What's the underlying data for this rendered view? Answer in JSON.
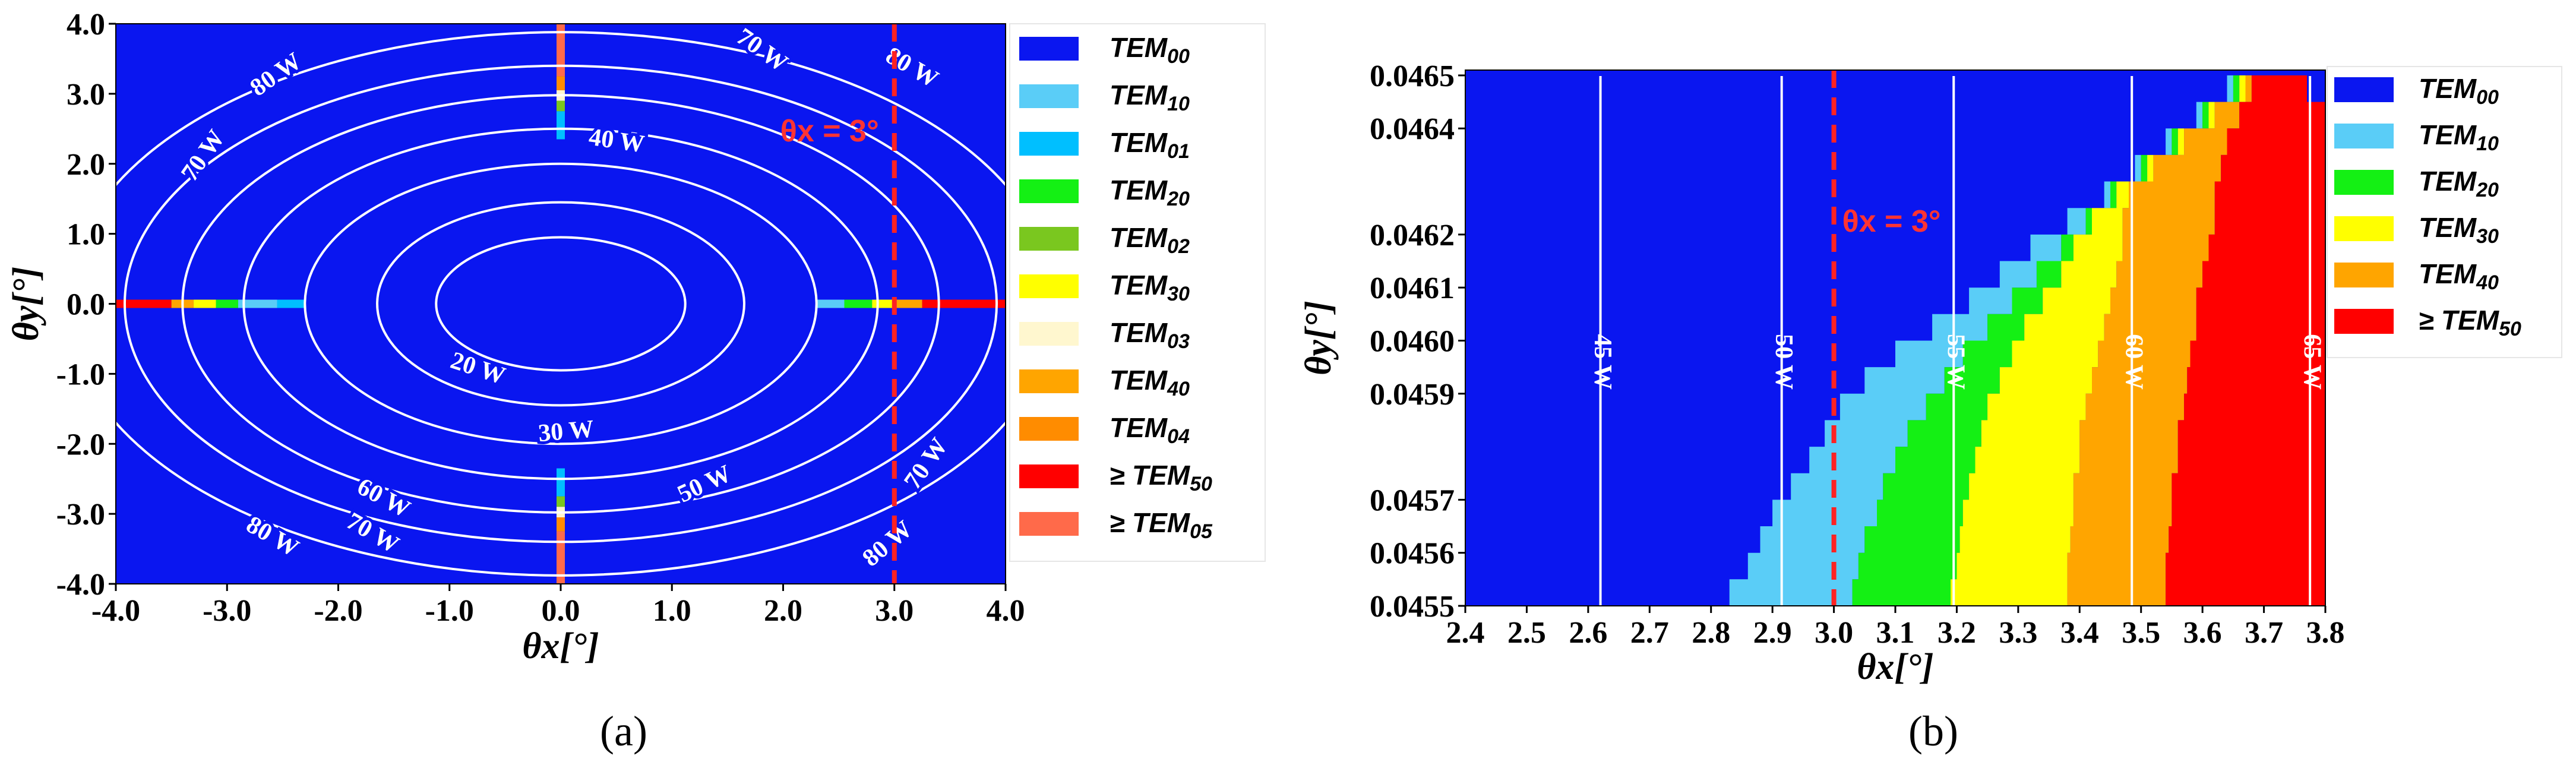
{
  "chart_data": [
    {
      "type": "heatmap",
      "panel_label": "(a)",
      "xlabel": "θx[°]",
      "ylabel": "θy[°]",
      "xlim": [
        -4.0,
        4.0
      ],
      "ylim": [
        -4.0,
        4.0
      ],
      "x_ticks": [
        "-4.0",
        "-3.0",
        "-2.0",
        "-1.0",
        "0.0",
        "1.0",
        "2.0",
        "3.0",
        "4.0"
      ],
      "y_ticks": [
        "-4.0",
        "-3.0",
        "-2.0",
        "-1.0",
        "0.0",
        "1.0",
        "2.0",
        "3.0",
        "4.0"
      ],
      "background_mode": "TEM00",
      "marker_line": {
        "x": 3.0,
        "label": "θx = 3°",
        "color": "#ff2222",
        "style": "dashed"
      },
      "legend": [
        {
          "label": "TEM00",
          "color": "#0a16f0"
        },
        {
          "label": "TEM10",
          "color": "#5acdf7"
        },
        {
          "label": "TEM01",
          "color": "#00bfff"
        },
        {
          "label": "TEM20",
          "color": "#14f014"
        },
        {
          "label": "TEM02",
          "color": "#7ac71f"
        },
        {
          "label": "TEM30",
          "color": "#ffff00"
        },
        {
          "label": "TEM03",
          "color": "#fff7cf"
        },
        {
          "label": "TEM40",
          "color": "#ffa500"
        },
        {
          "label": "TEM04",
          "color": "#ff8c00"
        },
        {
          "label": "≥ TEM50",
          "color": "#ff0000"
        },
        {
          "label": "≥ TEM05",
          "color": "#ff6a4a"
        }
      ],
      "contours": [
        {
          "label": "20 W",
          "rx": 1.12,
          "ry": 0.95
        },
        {
          "label": "30 W",
          "rx": 1.65,
          "ry": 1.45
        },
        {
          "label": "40 W",
          "rx": 2.3,
          "ry": 2.0
        },
        {
          "label": "50 W",
          "rx": 2.85,
          "ry": 2.5
        },
        {
          "label": "60 W",
          "rx": 3.4,
          "ry": 2.98
        },
        {
          "label": "70 W",
          "rx": 3.92,
          "ry": 3.4
        },
        {
          "label": "80 W",
          "rx": 4.45,
          "ry": 3.88
        }
      ],
      "contour_labels": [
        {
          "text": "20 W",
          "x": -0.75,
          "y": -0.95,
          "rot": 18
        },
        {
          "text": "30 W",
          "x": 0.05,
          "y": -1.85,
          "rot": -5
        },
        {
          "text": "40 W",
          "x": 0.5,
          "y": 2.3,
          "rot": 8
        },
        {
          "text": "50 W",
          "x": 1.3,
          "y": -2.6,
          "rot": -25
        },
        {
          "text": "60 W",
          "x": -1.6,
          "y": -2.8,
          "rot": 28
        },
        {
          "text": "70 W",
          "x": -1.7,
          "y": -3.3,
          "rot": 30
        },
        {
          "text": "70 W",
          "x": -3.2,
          "y": 2.1,
          "rot": -55
        },
        {
          "text": "70 W",
          "x": 1.8,
          "y": 3.6,
          "rot": 35
        },
        {
          "text": "70 W",
          "x": 3.3,
          "y": -2.3,
          "rot": -55
        },
        {
          "text": "80 W",
          "x": -2.55,
          "y": 3.25,
          "rot": -35
        },
        {
          "text": "80 W",
          "x": -2.6,
          "y": -3.35,
          "rot": 30
        },
        {
          "text": "80 W",
          "x": 3.15,
          "y": 3.35,
          "rot": 30
        },
        {
          "text": "80 W",
          "x": 2.95,
          "y": -3.45,
          "rot": -40
        }
      ],
      "mode_segments": [
        {
          "axis": "h",
          "from": -4.0,
          "to": -3.5,
          "mode": "≥ TEM50"
        },
        {
          "axis": "h",
          "from": -3.5,
          "to": -3.3,
          "mode": "TEM40"
        },
        {
          "axis": "h",
          "from": -3.3,
          "to": -3.1,
          "mode": "TEM30"
        },
        {
          "axis": "h",
          "from": -3.1,
          "to": -2.9,
          "mode": "TEM20"
        },
        {
          "axis": "h",
          "from": -2.9,
          "to": -2.55,
          "mode": "TEM10"
        },
        {
          "axis": "h",
          "from": -2.55,
          "to": -2.3,
          "mode": "TEM01"
        },
        {
          "axis": "h",
          "from": 2.3,
          "to": 2.55,
          "mode": "TEM10"
        },
        {
          "axis": "h",
          "from": 2.55,
          "to": 2.8,
          "mode": "TEM20"
        },
        {
          "axis": "h",
          "from": 2.8,
          "to": 3.0,
          "mode": "TEM30"
        },
        {
          "axis": "h",
          "from": 3.0,
          "to": 3.25,
          "mode": "TEM40"
        },
        {
          "axis": "h",
          "from": 3.25,
          "to": 4.0,
          "mode": "≥ TEM50"
        },
        {
          "axis": "v",
          "from": 3.25,
          "to": 4.0,
          "mode": "≥ TEM05"
        },
        {
          "axis": "v",
          "from": 3.05,
          "to": 3.25,
          "mode": "TEM04"
        },
        {
          "axis": "v",
          "from": 2.9,
          "to": 3.05,
          "mode": "TEM03"
        },
        {
          "axis": "v",
          "from": 2.75,
          "to": 2.9,
          "mode": "TEM02"
        },
        {
          "axis": "v",
          "from": 2.35,
          "to": 2.75,
          "mode": "TEM01"
        },
        {
          "axis": "v",
          "from": -2.75,
          "to": -2.35,
          "mode": "TEM01"
        },
        {
          "axis": "v",
          "from": -2.9,
          "to": -2.75,
          "mode": "TEM02"
        },
        {
          "axis": "v",
          "from": -3.05,
          "to": -2.9,
          "mode": "TEM03"
        },
        {
          "axis": "v",
          "from": -3.25,
          "to": -3.05,
          "mode": "TEM04"
        },
        {
          "axis": "v",
          "from": -4.0,
          "to": -3.25,
          "mode": "≥ TEM05"
        }
      ]
    },
    {
      "type": "heatmap",
      "panel_label": "(b)",
      "xlabel": "θx[°]",
      "ylabel": "θy[°]",
      "xlim": [
        2.4,
        3.8
      ],
      "ylim": [
        0.0455,
        0.04651
      ],
      "x_ticks": [
        "2.4",
        "2.5",
        "2.6",
        "2.7",
        "2.8",
        "2.9",
        "3.0",
        "3.1",
        "3.2",
        "3.3",
        "3.4",
        "3.5",
        "3.6",
        "3.7",
        "3.8"
      ],
      "y_ticks": [
        {
          "v": 0.0455,
          "t": "0.0455"
        },
        {
          "v": 0.0456,
          "t": "0.0456"
        },
        {
          "v": 0.0457,
          "t": "0.0457"
        },
        {
          "v": 0.0459,
          "t": "0.0459"
        },
        {
          "v": 0.046,
          "t": "0.0460"
        },
        {
          "v": 0.0461,
          "t": "0.0461"
        },
        {
          "v": 0.0462,
          "t": "0.0462"
        },
        {
          "v": 0.0464,
          "t": "0.0464"
        },
        {
          "v": 0.0465,
          "t": "0.0465"
        }
      ],
      "background_mode": "TEM00",
      "marker_line": {
        "x": 3.0,
        "label": "θx = 3°",
        "color": "#ff2222",
        "style": "dashed"
      },
      "legend": [
        {
          "label": "TEM00",
          "color": "#0a16f0"
        },
        {
          "label": "TEM10",
          "color": "#5acdf7"
        },
        {
          "label": "TEM20",
          "color": "#14f014"
        },
        {
          "label": "TEM30",
          "color": "#ffff00"
        },
        {
          "label": "TEM40",
          "color": "#ffa500"
        },
        {
          "label": "≥ TEM50",
          "color": "#ff0000"
        }
      ],
      "contour_lines": [
        {
          "x": 2.62,
          "label": "45 W"
        },
        {
          "x": 2.915,
          "label": "50 W"
        },
        {
          "x": 3.195,
          "label": "55 W"
        },
        {
          "x": 3.485,
          "label": "60 W"
        },
        {
          "x": 3.775,
          "label": "65 W"
        }
      ],
      "boundaries": {
        "y": [
          0.0455,
          0.04555,
          0.0456,
          0.04565,
          0.0457,
          0.04575,
          0.0458,
          0.04585,
          0.0459,
          0.04595,
          0.046,
          0.04605,
          0.0461,
          0.04615,
          0.0462,
          0.04625,
          0.0463,
          0.04635,
          0.0464,
          0.04645
        ],
        "TEM10_start": [
          2.83,
          2.86,
          2.88,
          2.9,
          2.93,
          2.96,
          2.985,
          3.01,
          3.05,
          3.1,
          3.16,
          3.22,
          3.27,
          3.32,
          3.38,
          3.44,
          3.49,
          3.54,
          3.59,
          3.64
        ],
        "TEM20_start": [
          3.03,
          3.04,
          3.05,
          3.07,
          3.08,
          3.1,
          3.12,
          3.15,
          3.18,
          3.21,
          3.25,
          3.29,
          3.33,
          3.37,
          3.41,
          3.45,
          3.5,
          3.55,
          3.6,
          3.65
        ],
        "TEM30_start": [
          3.19,
          3.2,
          3.205,
          3.21,
          3.22,
          3.23,
          3.24,
          3.25,
          3.27,
          3.29,
          3.31,
          3.34,
          3.37,
          3.39,
          3.42,
          3.46,
          3.51,
          3.56,
          3.61,
          3.66
        ],
        "TEM40_start": [
          3.38,
          3.38,
          3.385,
          3.39,
          3.39,
          3.4,
          3.4,
          3.41,
          3.42,
          3.43,
          3.44,
          3.45,
          3.46,
          3.47,
          3.47,
          3.48,
          3.52,
          3.57,
          3.62,
          3.67
        ],
        "TEM50_start": [
          3.54,
          3.54,
          3.545,
          3.55,
          3.55,
          3.56,
          3.56,
          3.57,
          3.575,
          3.58,
          3.59,
          3.59,
          3.6,
          3.61,
          3.62,
          3.62,
          3.63,
          3.64,
          3.66,
          3.68
        ],
        "TEM50_end": [
          3.8,
          3.8,
          3.8,
          3.8,
          3.8,
          3.8,
          3.8,
          3.8,
          3.8,
          3.8,
          3.8,
          3.8,
          3.8,
          3.8,
          3.8,
          3.8,
          3.8,
          3.8,
          3.8,
          3.77
        ]
      }
    }
  ]
}
